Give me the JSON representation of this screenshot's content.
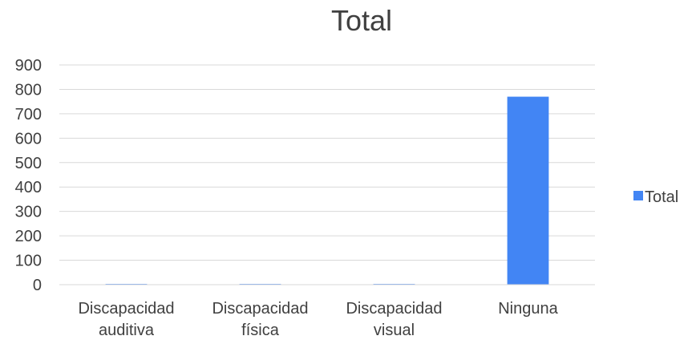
{
  "chart_data": {
    "type": "bar",
    "title": "Total",
    "categories": [
      [
        "Discapacidad",
        "auditiva"
      ],
      [
        "Discapacidad",
        "física"
      ],
      [
        "Discapacidad",
        "visual"
      ],
      [
        "Ninguna"
      ]
    ],
    "series": [
      {
        "name": "Total",
        "values": [
          3,
          3,
          3,
          770
        ],
        "color": "#4285f4"
      }
    ],
    "ylim": [
      0,
      900
    ],
    "yticks": [
      0,
      100,
      200,
      300,
      400,
      500,
      600,
      700,
      800,
      900
    ],
    "grid": true,
    "legend_position": "right",
    "gridline_color": "#d9d9d9",
    "text_color": "#404040"
  }
}
